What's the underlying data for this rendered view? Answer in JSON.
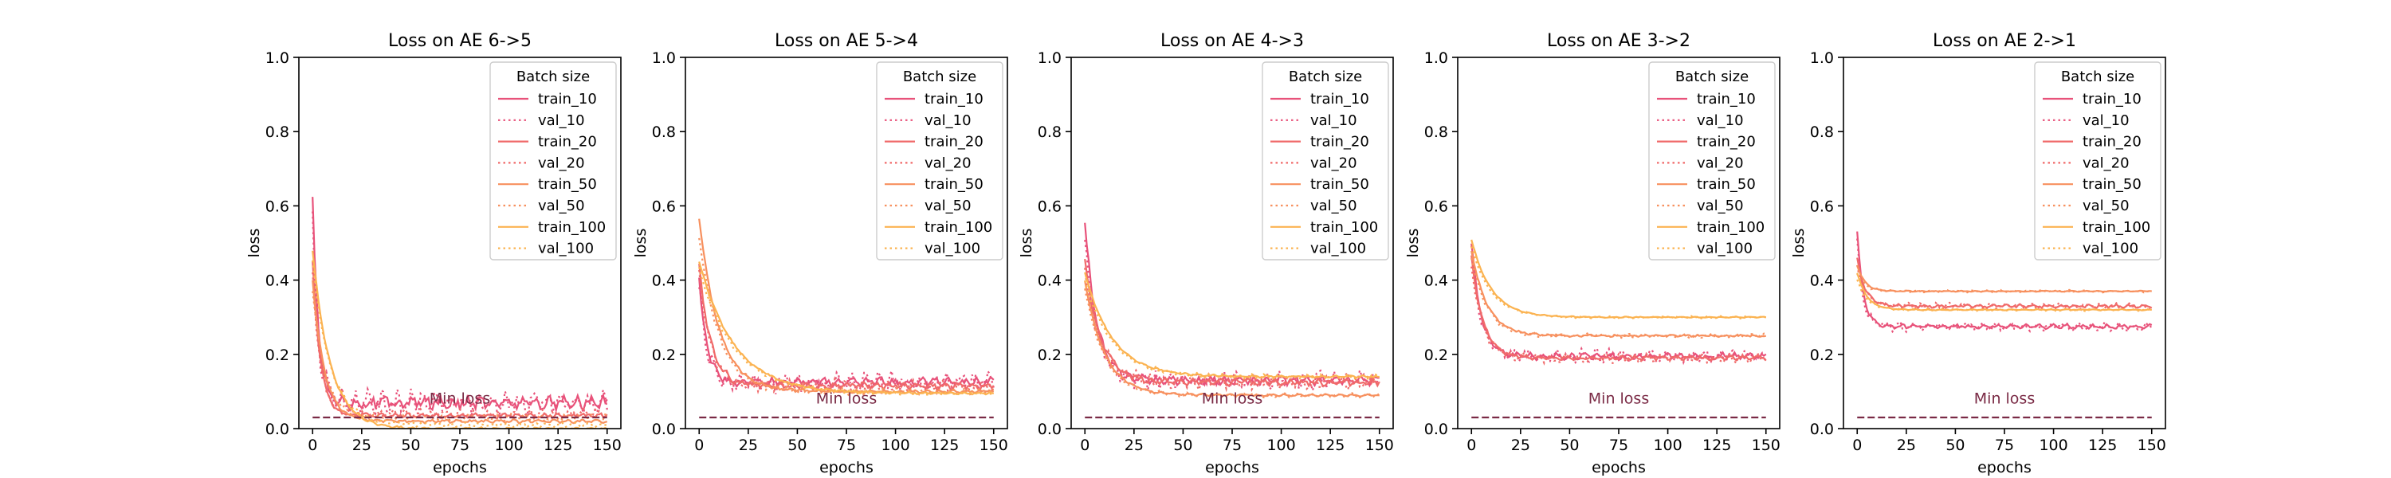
{
  "figure": {
    "facecolor": "#ffffff"
  },
  "legend": {
    "title": "Batch size",
    "entries": [
      {
        "label": "train_10",
        "color": "#e8527a",
        "style": "solid"
      },
      {
        "label": "val_10",
        "color": "#e8527a",
        "style": "dotted"
      },
      {
        "label": "train_20",
        "color": "#f06a6a",
        "style": "solid"
      },
      {
        "label": "val_20",
        "color": "#f06a6a",
        "style": "dotted"
      },
      {
        "label": "train_50",
        "color": "#f7905e",
        "style": "solid"
      },
      {
        "label": "val_50",
        "color": "#f7905e",
        "style": "dotted"
      },
      {
        "label": "train_100",
        "color": "#fbb351",
        "style": "solid"
      },
      {
        "label": "val_100",
        "color": "#fbb351",
        "style": "dotted"
      }
    ]
  },
  "min_loss": {
    "label": "Min loss",
    "value": 0.03,
    "color": "#7a2a45"
  },
  "chart_data": [
    {
      "type": "line",
      "title": "Loss on AE 6->5",
      "xlabel": "epochs",
      "ylabel": "loss",
      "xlim": [
        -7,
        157
      ],
      "ylim": [
        0,
        1.0
      ],
      "xticks": [
        0,
        25,
        50,
        75,
        100,
        125,
        150
      ],
      "yticks": [
        0.0,
        0.2,
        0.4,
        0.6,
        0.8,
        1.0
      ],
      "series": [
        {
          "name": "train_10",
          "start": 0.62,
          "plateau": 0.07,
          "decay": 3,
          "noise": 0.012
        },
        {
          "name": "val_10",
          "start": 0.55,
          "plateau": 0.07,
          "decay": 3,
          "noise": 0.022
        },
        {
          "name": "train_20",
          "start": 0.45,
          "plateau": 0.035,
          "decay": 4,
          "noise": 0.004
        },
        {
          "name": "val_20",
          "start": 0.42,
          "plateau": 0.04,
          "decay": 4,
          "noise": 0.008
        },
        {
          "name": "train_50",
          "start": 0.4,
          "plateau": 0.02,
          "decay": 6,
          "noise": 0.003
        },
        {
          "name": "val_50",
          "start": 0.38,
          "plateau": 0.03,
          "decay": 6,
          "noise": 0.006
        },
        {
          "name": "train_100",
          "start": 0.48,
          "plateau": 0.0,
          "decay": 9,
          "noise": 0.002
        },
        {
          "name": "val_100",
          "start": 0.45,
          "plateau": 0.01,
          "decay": 9,
          "noise": 0.004
        }
      ]
    },
    {
      "type": "line",
      "title": "Loss on AE 5->4",
      "xlabel": "epochs",
      "ylabel": "loss",
      "xlim": [
        -7,
        157
      ],
      "ylim": [
        0,
        1.0
      ],
      "xticks": [
        0,
        25,
        50,
        75,
        100,
        125,
        150
      ],
      "yticks": [
        0.0,
        0.2,
        0.4,
        0.6,
        0.8,
        1.0
      ],
      "series": [
        {
          "name": "train_10",
          "start": 0.4,
          "plateau": 0.125,
          "decay": 4,
          "noise": 0.008
        },
        {
          "name": "val_10",
          "start": 0.38,
          "plateau": 0.125,
          "decay": 4,
          "noise": 0.018
        },
        {
          "name": "train_20",
          "start": 0.44,
          "plateau": 0.115,
          "decay": 6,
          "noise": 0.006
        },
        {
          "name": "val_20",
          "start": 0.42,
          "plateau": 0.115,
          "decay": 6,
          "noise": 0.012
        },
        {
          "name": "train_50",
          "start": 0.57,
          "plateau": 0.1,
          "decay": 10,
          "noise": 0.003
        },
        {
          "name": "val_50",
          "start": 0.52,
          "plateau": 0.1,
          "decay": 10,
          "noise": 0.006
        },
        {
          "name": "train_100",
          "start": 0.45,
          "plateau": 0.095,
          "decay": 18,
          "noise": 0.002
        },
        {
          "name": "val_100",
          "start": 0.43,
          "plateau": 0.095,
          "decay": 18,
          "noise": 0.004
        }
      ]
    },
    {
      "type": "line",
      "title": "Loss on AE 4->3",
      "xlabel": "epochs",
      "ylabel": "loss",
      "xlim": [
        -7,
        157
      ],
      "ylim": [
        0,
        1.0
      ],
      "xticks": [
        0,
        25,
        50,
        75,
        100,
        125,
        150
      ],
      "yticks": [
        0.0,
        0.2,
        0.4,
        0.6,
        0.8,
        1.0
      ],
      "series": [
        {
          "name": "train_10",
          "start": 0.56,
          "plateau": 0.13,
          "decay": 6,
          "noise": 0.008
        },
        {
          "name": "val_10",
          "start": 0.5,
          "plateau": 0.13,
          "decay": 6,
          "noise": 0.016
        },
        {
          "name": "train_20",
          "start": 0.45,
          "plateau": 0.125,
          "decay": 8,
          "noise": 0.006
        },
        {
          "name": "val_20",
          "start": 0.42,
          "plateau": 0.125,
          "decay": 8,
          "noise": 0.012
        },
        {
          "name": "train_50",
          "start": 0.4,
          "plateau": 0.09,
          "decay": 10,
          "noise": 0.002
        },
        {
          "name": "val_50",
          "start": 0.38,
          "plateau": 0.09,
          "decay": 10,
          "noise": 0.004
        },
        {
          "name": "train_100",
          "start": 0.42,
          "plateau": 0.14,
          "decay": 14,
          "noise": 0.002
        },
        {
          "name": "val_100",
          "start": 0.4,
          "plateau": 0.14,
          "decay": 14,
          "noise": 0.004
        }
      ]
    },
    {
      "type": "line",
      "title": "Loss on AE 3->2",
      "xlabel": "epochs",
      "ylabel": "loss",
      "xlim": [
        -7,
        157
      ],
      "ylim": [
        0,
        1.0
      ],
      "xticks": [
        0,
        25,
        50,
        75,
        100,
        125,
        150
      ],
      "yticks": [
        0.0,
        0.2,
        0.4,
        0.6,
        0.8,
        1.0
      ],
      "series": [
        {
          "name": "train_10",
          "start": 0.5,
          "plateau": 0.195,
          "decay": 5,
          "noise": 0.006
        },
        {
          "name": "val_10",
          "start": 0.48,
          "plateau": 0.195,
          "decay": 5,
          "noise": 0.012
        },
        {
          "name": "train_20",
          "start": 0.46,
          "plateau": 0.19,
          "decay": 6,
          "noise": 0.004
        },
        {
          "name": "val_20",
          "start": 0.44,
          "plateau": 0.19,
          "decay": 6,
          "noise": 0.008
        },
        {
          "name": "train_50",
          "start": 0.48,
          "plateau": 0.25,
          "decay": 8,
          "noise": 0.002
        },
        {
          "name": "val_50",
          "start": 0.46,
          "plateau": 0.25,
          "decay": 8,
          "noise": 0.004
        },
        {
          "name": "train_100",
          "start": 0.51,
          "plateau": 0.3,
          "decay": 10,
          "noise": 0.001
        },
        {
          "name": "val_100",
          "start": 0.49,
          "plateau": 0.3,
          "decay": 10,
          "noise": 0.002
        }
      ]
    },
    {
      "type": "line",
      "title": "Loss on AE 2->1",
      "xlabel": "epochs",
      "ylabel": "loss",
      "xlim": [
        -7,
        157
      ],
      "ylim": [
        0,
        1.0
      ],
      "xticks": [
        0,
        25,
        50,
        75,
        100,
        125,
        150
      ],
      "yticks": [
        0.0,
        0.2,
        0.4,
        0.6,
        0.8,
        1.0
      ],
      "series": [
        {
          "name": "train_10",
          "start": 0.53,
          "plateau": 0.275,
          "decay": 3,
          "noise": 0.004
        },
        {
          "name": "val_10",
          "start": 0.5,
          "plateau": 0.275,
          "decay": 3,
          "noise": 0.008
        },
        {
          "name": "train_20",
          "start": 0.46,
          "plateau": 0.33,
          "decay": 4,
          "noise": 0.003
        },
        {
          "name": "val_20",
          "start": 0.44,
          "plateau": 0.33,
          "decay": 4,
          "noise": 0.006
        },
        {
          "name": "train_50",
          "start": 0.44,
          "plateau": 0.37,
          "decay": 4,
          "noise": 0.001
        },
        {
          "name": "val_50",
          "start": 0.42,
          "plateau": 0.37,
          "decay": 4,
          "noise": 0.002
        },
        {
          "name": "train_100",
          "start": 0.42,
          "plateau": 0.32,
          "decay": 5,
          "noise": 0.001
        },
        {
          "name": "val_100",
          "start": 0.4,
          "plateau": 0.32,
          "decay": 5,
          "noise": 0.002
        }
      ]
    }
  ]
}
